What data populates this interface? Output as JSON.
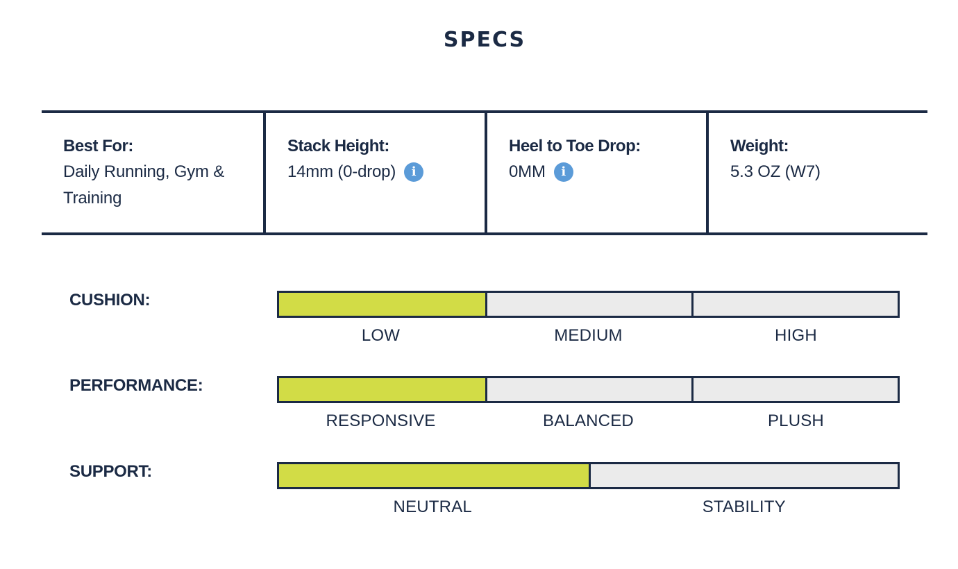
{
  "heading": "SPECS",
  "specs": [
    {
      "label": "Best For:",
      "value": "Daily Running, Gym & Training",
      "info": false
    },
    {
      "label": "Stack Height:",
      "value": "14mm (0-drop)",
      "info": true
    },
    {
      "label": "Heel to Toe Drop:",
      "value": "0MM",
      "info": true
    },
    {
      "label": "Weight:",
      "value": "5.3 OZ (W7)",
      "info": false
    }
  ],
  "colors": {
    "navy": "#1b2a44",
    "active_fill": "#d2dc46",
    "inactive_fill": "#ebebeb",
    "info_icon": "#5b9bd8"
  },
  "meters": [
    {
      "label": "CUSHION:",
      "levels": [
        "LOW",
        "MEDIUM",
        "HIGH"
      ],
      "selected": "LOW"
    },
    {
      "label": "PERFORMANCE:",
      "levels": [
        "RESPONSIVE",
        "BALANCED",
        "PLUSH"
      ],
      "selected": "RESPONSIVE"
    },
    {
      "label": "SUPPORT:",
      "levels": [
        "NEUTRAL",
        "STABILITY"
      ],
      "selected": "NEUTRAL"
    }
  ]
}
